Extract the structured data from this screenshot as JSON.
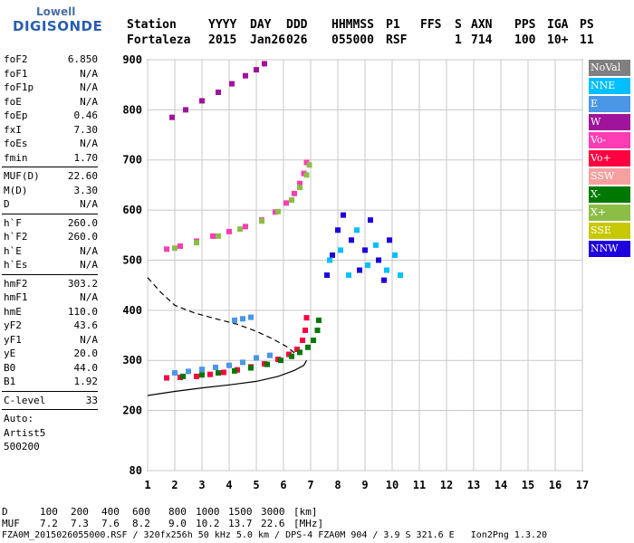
{
  "logo": {
    "line1": "Lowell",
    "line2": "DIGISONDE"
  },
  "header": {
    "labels": [
      "Station",
      "YYYY",
      "DAY",
      "DDD",
      "HHMMSS",
      "P1",
      "FFS",
      "S",
      "AXN",
      "PPS",
      "IGA",
      "PS"
    ],
    "values": [
      "Fortaleza",
      "2015",
      "Jan26",
      "026",
      "055000",
      "RSF",
      "1",
      "714",
      "100",
      "10+",
      "11"
    ]
  },
  "params_groups": [
    [
      {
        "label": "foF2",
        "value": "6.850"
      },
      {
        "label": "foF1",
        "value": "N/A"
      },
      {
        "label": "foF1p",
        "value": "N/A"
      },
      {
        "label": "foE",
        "value": "N/A"
      },
      {
        "label": "foEp",
        "value": "0.46"
      },
      {
        "label": "fxI",
        "value": "7.30"
      },
      {
        "label": "foEs",
        "value": "N/A"
      },
      {
        "label": "fmin",
        "value": "1.70"
      }
    ],
    [
      {
        "label": "MUF(D)",
        "value": "22.60"
      },
      {
        "label": "M(D)",
        "value": "3.30"
      },
      {
        "label": "D",
        "value": "N/A"
      }
    ],
    [
      {
        "label": "h`F",
        "value": "260.0"
      },
      {
        "label": "h`F2",
        "value": "260.0"
      },
      {
        "label": "h`E",
        "value": "N/A"
      },
      {
        "label": "h`Es",
        "value": "N/A"
      }
    ],
    [
      {
        "label": "hmF2",
        "value": "303.2"
      },
      {
        "label": "hmF1",
        "value": "N/A"
      },
      {
        "label": "hmE",
        "value": "110.0"
      },
      {
        "label": "yF2",
        "value": "43.6"
      },
      {
        "label": "yF1",
        "value": "N/A"
      },
      {
        "label": "yE",
        "value": "20.0"
      },
      {
        "label": "B0",
        "value": "44.0"
      },
      {
        "label": "B1",
        "value": "1.92"
      }
    ],
    [
      {
        "label": "C-level",
        "value": "33"
      }
    ]
  ],
  "autoscale": {
    "line1": "Auto:",
    "line2": "Artist5",
    "line3": "500200"
  },
  "legend": [
    {
      "label": "NoVal",
      "color": "#808080"
    },
    {
      "label": "NNE",
      "color": "#00bfff"
    },
    {
      "label": "E",
      "color": "#4b96e6"
    },
    {
      "label": "W",
      "color": "#a0149b"
    },
    {
      "label": "Vo-",
      "color": "#ff3cb4"
    },
    {
      "label": "Vo+",
      "color": "#ff0040"
    },
    {
      "label": "SSW",
      "color": "#f5a0a0"
    },
    {
      "label": "X-",
      "color": "#007800"
    },
    {
      "label": "X+",
      "color": "#8cbe46"
    },
    {
      "label": "SSE",
      "color": "#c8c800"
    },
    {
      "label": "NNW",
      "color": "#1e00dc"
    }
  ],
  "footer": {
    "d_label": "D",
    "d_values": [
      "100",
      "200",
      "400",
      "600",
      "800",
      "1000",
      "1500",
      "3000"
    ],
    "d_unit": "[km]",
    "muf_label": "MUF",
    "muf_values": [
      "7.2",
      "7.3",
      "7.6",
      "8.2",
      "9.0",
      "10.2",
      "13.7",
      "22.6"
    ],
    "muf_unit": "[MHz]",
    "info": "FZA0M_2015026055000.RSF / 320fx256h 50 kHz 5.0 km / DPS-4 FZA0M 904 / 3.9 S 321.6 E   Ion2Png 1.3.20"
  },
  "chart_data": {
    "type": "scatter",
    "xlim": [
      1,
      17
    ],
    "ylim": [
      80,
      900
    ],
    "x_ticks": [
      1,
      2,
      3,
      4,
      5,
      6,
      7,
      8,
      9,
      10,
      11,
      12,
      13,
      14,
      15,
      16,
      17
    ],
    "y_ticks": [
      80,
      200,
      300,
      400,
      500,
      600,
      700,
      800,
      900
    ],
    "grid": true,
    "series": [
      {
        "name": "Vo+",
        "color": "#ff0040",
        "trace": "o-trace-1hop",
        "points": [
          [
            1.7,
            265
          ],
          [
            2.2,
            266
          ],
          [
            2.8,
            268
          ],
          [
            3.3,
            272
          ],
          [
            3.8,
            276
          ],
          [
            4.3,
            281
          ],
          [
            4.8,
            287
          ],
          [
            5.3,
            293
          ],
          [
            5.8,
            302
          ],
          [
            6.2,
            312
          ],
          [
            6.5,
            322
          ],
          [
            6.7,
            340
          ],
          [
            6.8,
            360
          ],
          [
            6.85,
            385
          ]
        ]
      },
      {
        "name": "X-",
        "color": "#007800",
        "trace": "x-trace-1hop",
        "points": [
          [
            2.3,
            268
          ],
          [
            3.0,
            271
          ],
          [
            3.6,
            275
          ],
          [
            4.2,
            279
          ],
          [
            4.8,
            285
          ],
          [
            5.4,
            292
          ],
          [
            5.9,
            300
          ],
          [
            6.3,
            308
          ],
          [
            6.6,
            316
          ],
          [
            6.9,
            326
          ],
          [
            7.1,
            340
          ],
          [
            7.25,
            360
          ],
          [
            7.3,
            380
          ]
        ]
      },
      {
        "name": "Vo-",
        "color": "#ff3cb4",
        "trace": "o-trace-2hop",
        "points": [
          [
            1.7,
            522
          ],
          [
            2.2,
            528
          ],
          [
            2.8,
            538
          ],
          [
            3.4,
            548
          ],
          [
            4.0,
            557
          ],
          [
            4.6,
            567
          ],
          [
            5.2,
            580
          ],
          [
            5.7,
            596
          ],
          [
            6.1,
            614
          ],
          [
            6.4,
            633
          ],
          [
            6.6,
            653
          ],
          [
            6.75,
            673
          ],
          [
            6.85,
            695
          ]
        ]
      },
      {
        "name": "X+",
        "color": "#8cbe46",
        "trace": "x-trace-2hop",
        "points": [
          [
            2.0,
            524
          ],
          [
            2.8,
            535
          ],
          [
            3.6,
            548
          ],
          [
            4.4,
            562
          ],
          [
            5.2,
            578
          ],
          [
            5.8,
            597
          ],
          [
            6.3,
            620
          ],
          [
            6.6,
            645
          ],
          [
            6.85,
            670
          ],
          [
            6.95,
            690
          ]
        ]
      },
      {
        "name": "W",
        "color": "#a0149b",
        "trace": "o-trace-3hop",
        "points": [
          [
            1.9,
            785
          ],
          [
            2.4,
            800
          ],
          [
            3.0,
            818
          ],
          [
            3.6,
            835
          ],
          [
            4.1,
            852
          ],
          [
            4.6,
            868
          ],
          [
            5.0,
            880
          ],
          [
            5.3,
            892
          ]
        ]
      },
      {
        "name": "E",
        "color": "#4b96e6",
        "trace": "spread-low",
        "points": [
          [
            2.0,
            275
          ],
          [
            2.5,
            278
          ],
          [
            3.0,
            282
          ],
          [
            3.5,
            286
          ],
          [
            4.0,
            290
          ],
          [
            4.5,
            296
          ],
          [
            5.0,
            305
          ],
          [
            5.5,
            310
          ],
          [
            4.2,
            380
          ],
          [
            4.5,
            383
          ],
          [
            4.8,
            386
          ]
        ]
      },
      {
        "name": "NNW",
        "color": "#1e00dc",
        "trace": "spread-f-cluster",
        "points": [
          [
            7.6,
            470
          ],
          [
            7.8,
            510
          ],
          [
            8.0,
            560
          ],
          [
            8.2,
            590
          ],
          [
            8.5,
            540
          ],
          [
            8.8,
            480
          ],
          [
            9.0,
            520
          ],
          [
            9.2,
            580
          ],
          [
            9.5,
            500
          ],
          [
            9.7,
            460
          ],
          [
            9.9,
            540
          ]
        ]
      },
      {
        "name": "NNE",
        "color": "#00bfff",
        "trace": "spread-f-cluster",
        "points": [
          [
            7.7,
            500
          ],
          [
            8.1,
            520
          ],
          [
            8.4,
            470
          ],
          [
            8.7,
            560
          ],
          [
            9.1,
            490
          ],
          [
            9.4,
            530
          ],
          [
            9.8,
            480
          ],
          [
            10.1,
            510
          ],
          [
            10.3,
            470
          ]
        ]
      }
    ],
    "profile_line": {
      "style": "solid",
      "points": [
        [
          1.0,
          230
        ],
        [
          2.0,
          238
        ],
        [
          3.0,
          245
        ],
        [
          4.0,
          251
        ],
        [
          5.0,
          258
        ],
        [
          5.8,
          268
        ],
        [
          6.4,
          280
        ],
        [
          6.75,
          290
        ],
        [
          6.85,
          300
        ]
      ]
    },
    "profile_dashed": {
      "style": "dashed",
      "points": [
        [
          1.0,
          465
        ],
        [
          1.5,
          435
        ],
        [
          2.0,
          410
        ],
        [
          2.7,
          395
        ],
        [
          3.5,
          383
        ],
        [
          4.3,
          372
        ],
        [
          5.0,
          358
        ],
        [
          5.6,
          343
        ],
        [
          6.1,
          328
        ],
        [
          6.4,
          315
        ]
      ]
    }
  }
}
